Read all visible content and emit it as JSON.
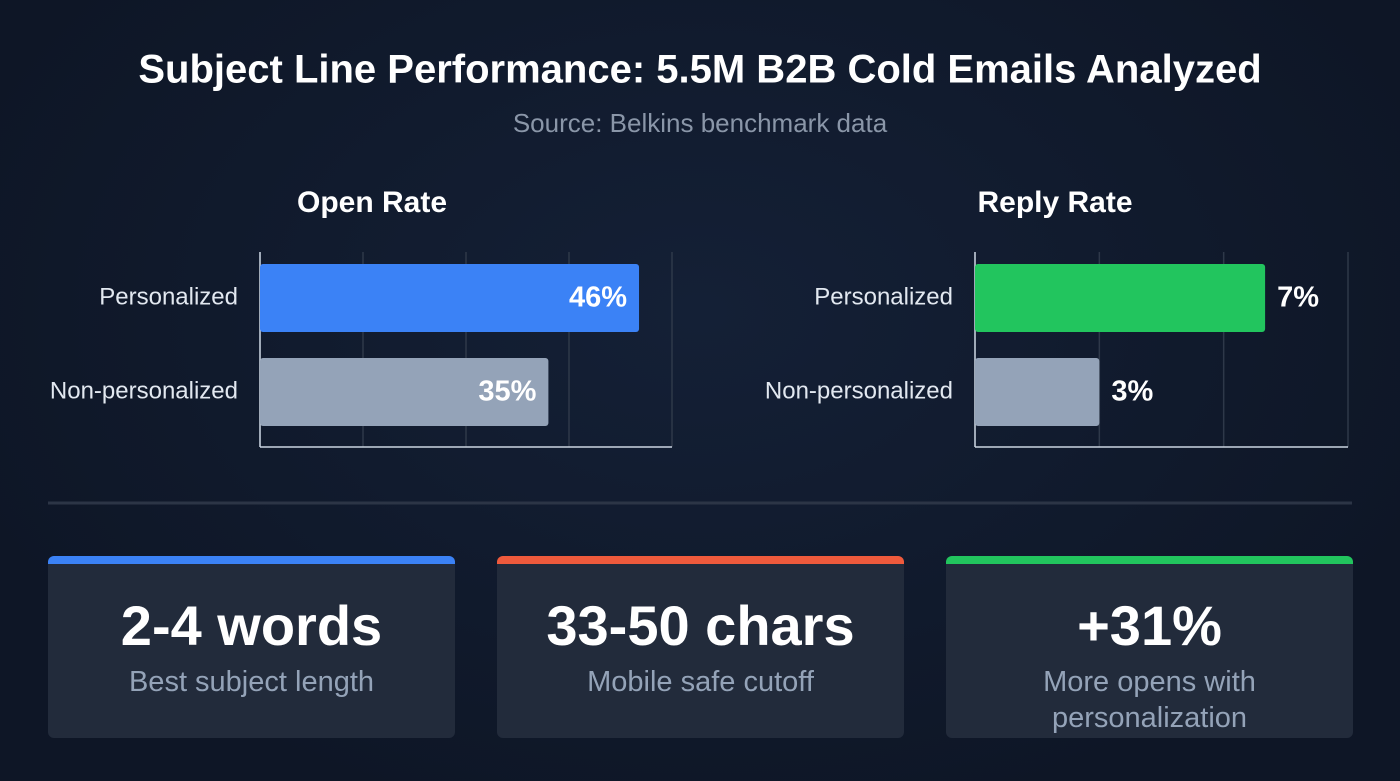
{
  "title": "Subject Line Performance: 5.5M B2B Cold Emails Analyzed",
  "subtitle": "Source: Belkins benchmark data",
  "chart_data": [
    {
      "type": "bar",
      "orientation": "horizontal",
      "title": "Open Rate",
      "categories": [
        "Personalized",
        "Non-personalized"
      ],
      "values": [
        46,
        35
      ],
      "value_labels": [
        "46%",
        "35%"
      ],
      "colors": [
        "#3b82f6",
        "#94a3b8"
      ],
      "label_position": "inside",
      "xlim": [
        0,
        50
      ],
      "xticks": [
        0,
        12.5,
        25,
        37.5,
        50
      ],
      "grid": true
    },
    {
      "type": "bar",
      "orientation": "horizontal",
      "title": "Reply Rate",
      "categories": [
        "Personalized",
        "Non-personalized"
      ],
      "values": [
        7,
        3
      ],
      "value_labels": [
        "7%",
        "3%"
      ],
      "colors": [
        "#22c55e",
        "#94a3b8"
      ],
      "label_position": "outside",
      "xlim": [
        0,
        9
      ],
      "xticks": [
        0,
        3,
        6,
        9
      ],
      "grid": true
    }
  ],
  "cards": [
    {
      "value": "2-4 words",
      "label": "Best subject length",
      "color": "#3b82f6"
    },
    {
      "value": "33-50 chars",
      "label": "Mobile safe cutoff",
      "color": "#ef5a3c"
    },
    {
      "value": "+31%",
      "label": "More opens with personalization",
      "color": "#22c55e"
    }
  ]
}
